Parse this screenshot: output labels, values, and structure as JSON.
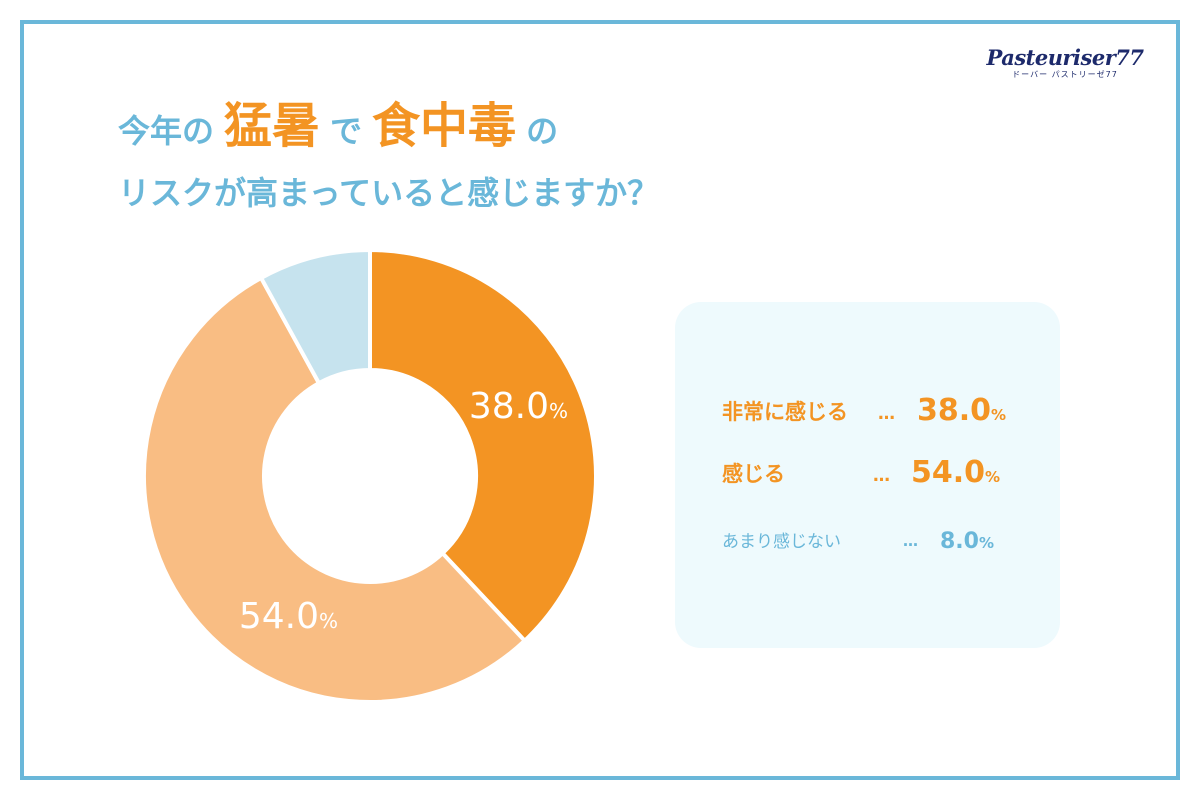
{
  "logo": {
    "main": "Pasteuriser77",
    "sub": "ドーバー パストリーゼ77"
  },
  "title": {
    "part1": "今年の",
    "strong1": "猛暑",
    "part2": "で",
    "strong2": "食中毒",
    "part3": "の",
    "line2": "リスクが高まっていると感じますか？"
  },
  "colors": {
    "accent_blue": "#6ab7d9",
    "accent_orange": "#f39423",
    "light_orange": "#f9bd83",
    "light_blue": "#c6e3ee",
    "legend_bg": "#eefafd"
  },
  "chart_data": {
    "type": "pie",
    "categories": [
      "非常に感じる",
      "感じる",
      "あまり感じない"
    ],
    "values": [
      38.0,
      54.0,
      8.0
    ],
    "slice_labels": [
      "38.0",
      "54.0",
      ""
    ],
    "unit": "%",
    "colors": [
      "#f39423",
      "#f9bd83",
      "#c6e3ee"
    ]
  },
  "legend": {
    "dots": "…",
    "items": [
      {
        "label": "非常に感じる",
        "value": "38.0",
        "unit": "%"
      },
      {
        "label": "感じる",
        "value": "54.0",
        "unit": "%"
      },
      {
        "label": "あまり感じない",
        "value": "8.0",
        "unit": "%"
      }
    ]
  }
}
